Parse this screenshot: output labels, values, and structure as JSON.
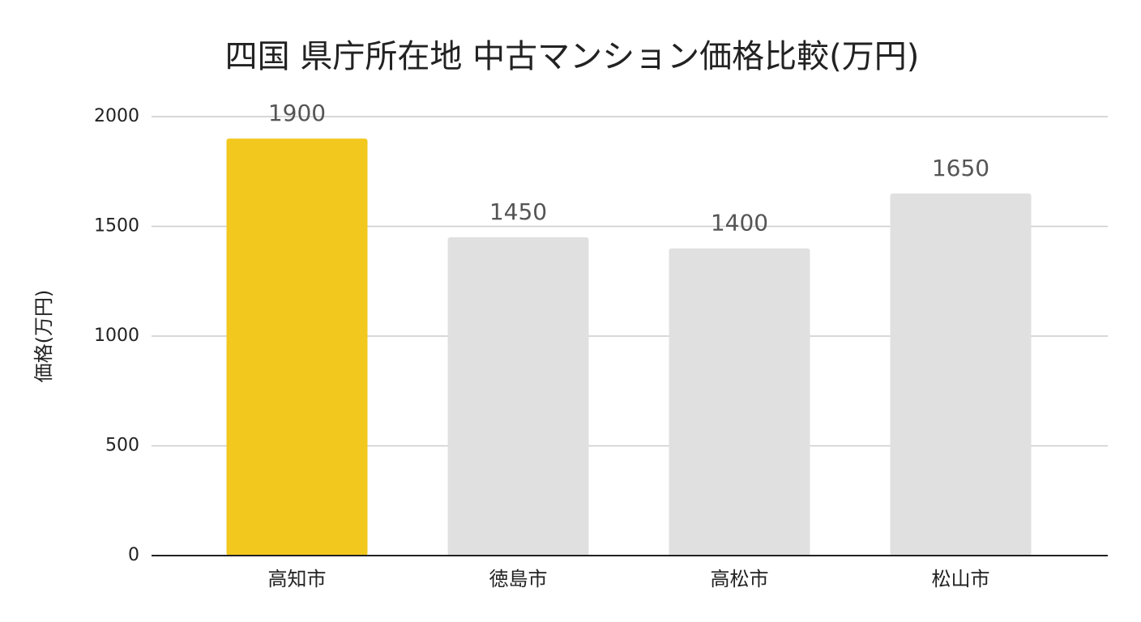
{
  "chart_data": {
    "type": "bar",
    "title": "四国 県庁所在地 中古マンション価格比較(万円)",
    "y_label": "価格(万円)",
    "categories": [
      "高知市",
      "徳島市",
      "高松市",
      "松山市"
    ],
    "values": [
      1900,
      1450,
      1400,
      1650
    ],
    "colors": [
      "#f2c81e",
      "#e0e0e0",
      "#e0e0e0",
      "#e0e0e0"
    ],
    "ylim": [
      0,
      2000
    ],
    "yticks": [
      0,
      500,
      1000,
      1500,
      2000
    ],
    "grid": true
  }
}
